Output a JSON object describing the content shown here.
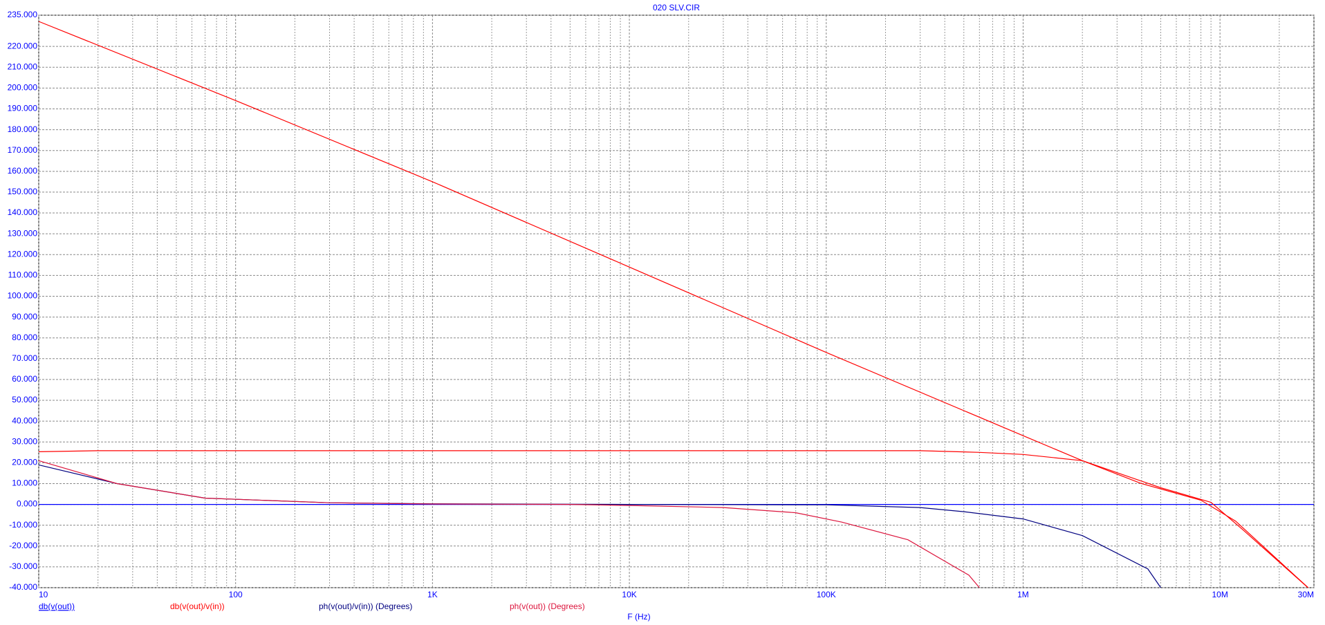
{
  "chart_data": {
    "type": "line",
    "title": "020 SLV.CIR",
    "x_label": "F (Hz)",
    "xscale": "log",
    "grid": true,
    "xlim": [
      10,
      30000000
    ],
    "ylim": [
      -40,
      235
    ],
    "xticks": [
      10,
      100,
      {
        "value": 1000,
        "label": "1K"
      },
      {
        "value": 10000,
        "label": "10K"
      },
      {
        "value": 100000,
        "label": "100K"
      },
      {
        "value": 1000000,
        "label": "1M"
      },
      {
        "value": 10000000,
        "label": "10M"
      },
      {
        "value": 30000000,
        "label": "30M"
      }
    ],
    "yticks": [
      {
        "value": 235,
        "label": "235.000"
      },
      {
        "value": 220,
        "label": "220.000"
      },
      {
        "value": 210,
        "label": "210.000"
      },
      {
        "value": 200,
        "label": "200.000"
      },
      {
        "value": 190,
        "label": "190.000"
      },
      {
        "value": 180,
        "label": "180.000"
      },
      {
        "value": 170,
        "label": "170.000"
      },
      {
        "value": 160,
        "label": "160.000"
      },
      {
        "value": 150,
        "label": "150.000"
      },
      {
        "value": 140,
        "label": "140.000"
      },
      {
        "value": 130,
        "label": "130.000"
      },
      {
        "value": 120,
        "label": "120.000"
      },
      {
        "value": 110,
        "label": "110.000"
      },
      {
        "value": 100,
        "label": "100.000"
      },
      {
        "value": 90,
        "label": "90.000"
      },
      {
        "value": 80,
        "label": "80.000"
      },
      {
        "value": 70,
        "label": "70.000"
      },
      {
        "value": 60,
        "label": "60.000"
      },
      {
        "value": 50,
        "label": "50.000"
      },
      {
        "value": 40,
        "label": "40.000"
      },
      {
        "value": 30,
        "label": "30.000"
      },
      {
        "value": 20,
        "label": "20.000"
      },
      {
        "value": 10,
        "label": "10.000"
      },
      {
        "value": 0,
        "label": "0.000"
      },
      {
        "value": -10,
        "label": "-10.000"
      },
      {
        "value": -20,
        "label": "-20.000"
      },
      {
        "value": -30,
        "label": "-30.000"
      },
      {
        "value": -40,
        "label": "-40.000"
      }
    ],
    "series": [
      {
        "name": "db(v(out))",
        "color": "#0000ff",
        "x": [
          10,
          30000000
        ],
        "values": [
          0,
          0
        ]
      },
      {
        "name": "db(v(out)/v(in))",
        "color": "#ff0000",
        "x": [
          10,
          20,
          100000,
          300000,
          600000,
          1000000,
          2000000,
          4000000,
          8000000,
          12000000,
          28000000
        ],
        "values": [
          25.3,
          25.8,
          25.8,
          25.8,
          25,
          24,
          21,
          10,
          2,
          -8,
          -40
        ]
      },
      {
        "name": "ph(v(out)/v(in)) (Degrees)",
        "color": "#000080",
        "x": [
          10,
          25,
          70,
          300,
          1000,
          10000,
          100000,
          300000,
          500000,
          1000000,
          2000000,
          4300000,
          5000000
        ],
        "values": [
          19,
          10,
          3,
          0.8,
          0.3,
          0,
          -0.2,
          -1.5,
          -3.5,
          -7,
          -15,
          -31,
          -40
        ]
      },
      {
        "name": "ph(v(out)) (Degrees)",
        "color": "#dc143c",
        "x": [
          10,
          25,
          70,
          300,
          1000,
          5000,
          10000,
          30000,
          70000,
          120000,
          260000,
          530000,
          600000
        ],
        "values": [
          21,
          10,
          3,
          0.8,
          0.2,
          0,
          -0.5,
          -1.5,
          -4,
          -8.5,
          -17,
          -34,
          -40
        ]
      },
      {
        "color": "#ff0000",
        "x": [
          10,
          100,
          1000,
          10000,
          100000,
          1000000,
          2000000,
          5000000,
          9000000,
          13000000,
          28000000
        ],
        "values": [
          232,
          194,
          155,
          114,
          73,
          33,
          21,
          8,
          1,
          -12,
          -40
        ]
      }
    ]
  }
}
